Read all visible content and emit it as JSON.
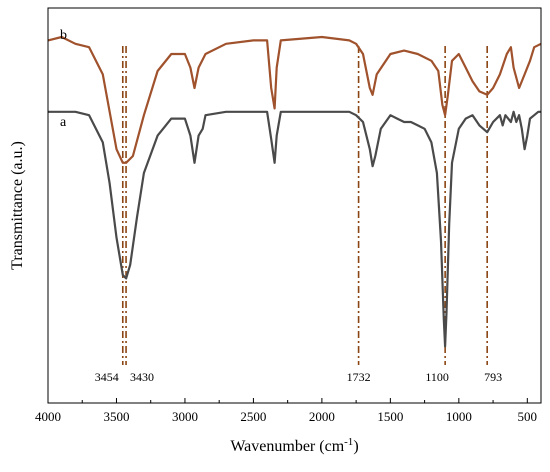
{
  "chart_data": {
    "type": "line",
    "xlabel": "Wavenumber (cm",
    "xlabel_sup": "-1",
    "xlabel_suffix": ")",
    "ylabel": "Transmittance (a.u.)",
    "xlim": [
      4000,
      400
    ],
    "x_ticks": [
      4000,
      3500,
      3000,
      2500,
      2000,
      1500,
      1000,
      500
    ],
    "grid": false,
    "legend": "none",
    "series": [
      {
        "name": "b",
        "color": "#a0522d",
        "points": [
          [
            4000,
            0.94
          ],
          [
            3900,
            0.95
          ],
          [
            3800,
            0.93
          ],
          [
            3700,
            0.92
          ],
          [
            3600,
            0.84
          ],
          [
            3500,
            0.62
          ],
          [
            3454,
            0.58
          ],
          [
            3430,
            0.58
          ],
          [
            3380,
            0.6
          ],
          [
            3300,
            0.72
          ],
          [
            3200,
            0.85
          ],
          [
            3100,
            0.9
          ],
          [
            3000,
            0.9
          ],
          [
            2960,
            0.86
          ],
          [
            2930,
            0.8
          ],
          [
            2900,
            0.86
          ],
          [
            2850,
            0.9
          ],
          [
            2700,
            0.93
          ],
          [
            2500,
            0.94
          ],
          [
            2400,
            0.94
          ],
          [
            2370,
            0.8
          ],
          [
            2345,
            0.74
          ],
          [
            2330,
            0.86
          ],
          [
            2300,
            0.94
          ],
          [
            2000,
            0.95
          ],
          [
            1800,
            0.94
          ],
          [
            1750,
            0.93
          ],
          [
            1700,
            0.9
          ],
          [
            1650,
            0.8
          ],
          [
            1630,
            0.78
          ],
          [
            1600,
            0.84
          ],
          [
            1500,
            0.9
          ],
          [
            1400,
            0.91
          ],
          [
            1300,
            0.9
          ],
          [
            1200,
            0.88
          ],
          [
            1150,
            0.85
          ],
          [
            1120,
            0.75
          ],
          [
            1100,
            0.72
          ],
          [
            1080,
            0.78
          ],
          [
            1050,
            0.88
          ],
          [
            1000,
            0.9
          ],
          [
            950,
            0.86
          ],
          [
            900,
            0.82
          ],
          [
            850,
            0.79
          ],
          [
            793,
            0.78
          ],
          [
            750,
            0.8
          ],
          [
            700,
            0.84
          ],
          [
            650,
            0.9
          ],
          [
            620,
            0.92
          ],
          [
            600,
            0.86
          ],
          [
            560,
            0.8
          ],
          [
            520,
            0.84
          ],
          [
            480,
            0.88
          ],
          [
            450,
            0.92
          ],
          [
            400,
            0.93
          ]
        ]
      },
      {
        "name": "a",
        "color": "#4a4a4a",
        "points": [
          [
            4000,
            0.73
          ],
          [
            3900,
            0.73
          ],
          [
            3800,
            0.73
          ],
          [
            3700,
            0.72
          ],
          [
            3600,
            0.64
          ],
          [
            3550,
            0.52
          ],
          [
            3500,
            0.36
          ],
          [
            3454,
            0.25
          ],
          [
            3430,
            0.24
          ],
          [
            3400,
            0.28
          ],
          [
            3350,
            0.42
          ],
          [
            3300,
            0.55
          ],
          [
            3200,
            0.66
          ],
          [
            3100,
            0.71
          ],
          [
            3000,
            0.71
          ],
          [
            2960,
            0.66
          ],
          [
            2930,
            0.58
          ],
          [
            2900,
            0.66
          ],
          [
            2870,
            0.68
          ],
          [
            2850,
            0.72
          ],
          [
            2700,
            0.73
          ],
          [
            2500,
            0.73
          ],
          [
            2400,
            0.73
          ],
          [
            2370,
            0.65
          ],
          [
            2345,
            0.58
          ],
          [
            2330,
            0.66
          ],
          [
            2300,
            0.73
          ],
          [
            2100,
            0.73
          ],
          [
            2000,
            0.73
          ],
          [
            1900,
            0.73
          ],
          [
            1800,
            0.73
          ],
          [
            1750,
            0.72
          ],
          [
            1700,
            0.7
          ],
          [
            1650,
            0.62
          ],
          [
            1630,
            0.57
          ],
          [
            1610,
            0.6
          ],
          [
            1570,
            0.68
          ],
          [
            1500,
            0.72
          ],
          [
            1450,
            0.71
          ],
          [
            1400,
            0.7
          ],
          [
            1350,
            0.7
          ],
          [
            1300,
            0.69
          ],
          [
            1250,
            0.68
          ],
          [
            1200,
            0.64
          ],
          [
            1160,
            0.55
          ],
          [
            1130,
            0.35
          ],
          [
            1110,
            0.12
          ],
          [
            1100,
            0.04
          ],
          [
            1090,
            0.14
          ],
          [
            1070,
            0.4
          ],
          [
            1050,
            0.58
          ],
          [
            1000,
            0.68
          ],
          [
            950,
            0.71
          ],
          [
            900,
            0.72
          ],
          [
            850,
            0.69
          ],
          [
            793,
            0.67
          ],
          [
            750,
            0.7
          ],
          [
            700,
            0.72
          ],
          [
            680,
            0.69
          ],
          [
            660,
            0.72
          ],
          [
            620,
            0.7
          ],
          [
            600,
            0.73
          ],
          [
            580,
            0.7
          ],
          [
            560,
            0.72
          ],
          [
            540,
            0.68
          ],
          [
            520,
            0.62
          ],
          [
            500,
            0.66
          ],
          [
            480,
            0.71
          ],
          [
            450,
            0.72
          ],
          [
            420,
            0.73
          ],
          [
            400,
            0.73
          ]
        ]
      }
    ],
    "annotations": [
      {
        "label": "3454",
        "x": 3454
      },
      {
        "label": "3430",
        "x": 3430
      },
      {
        "label": "1732",
        "x": 1732
      },
      {
        "label": "1100",
        "x": 1100
      },
      {
        "label": "793",
        "x": 793
      }
    ],
    "series_labels": [
      "b",
      "a"
    ],
    "ref_line_color": "#8b4513"
  }
}
